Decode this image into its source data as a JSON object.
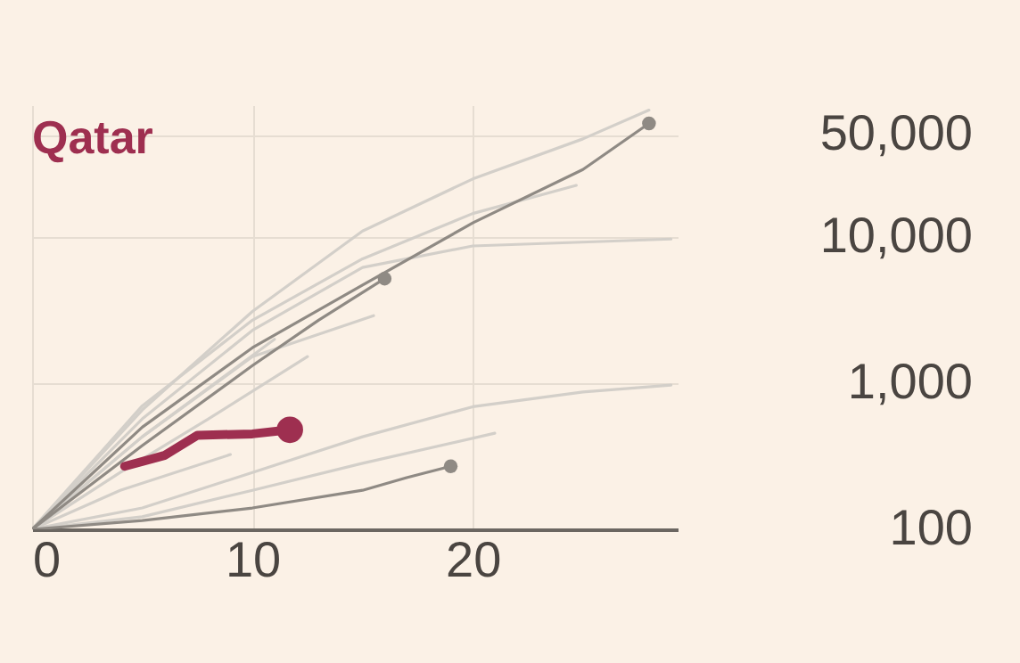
{
  "chart_data": {
    "type": "line",
    "title": "Qatar",
    "log": "y",
    "grid": true,
    "xlim": [
      0,
      29.3
    ],
    "xticks": [
      0,
      10,
      20
    ],
    "ylim": [
      100,
      80000
    ],
    "yticks": [
      100,
      {
        "value": 1000,
        "label": "1,000"
      },
      {
        "value": 10000,
        "label": "10,000"
      },
      {
        "value": 50000,
        "label": "50,000"
      }
    ],
    "series": [
      {
        "color": "#d3cfc9",
        "x": [
          0,
          5,
          10,
          15,
          20,
          25,
          28
        ],
        "values": [
          100,
          656,
          3100,
          11000,
          25000,
          47000,
          74000
        ]
      },
      {
        "color": "#d3cfc9",
        "x": [
          0,
          5,
          10,
          15,
          20,
          29
        ],
        "values": [
          100,
          570,
          2300,
          6200,
          8700,
          9700
        ]
      },
      {
        "color": "#d3cfc9",
        "x": [
          0,
          5,
          10,
          15,
          20,
          24.7
        ],
        "values": [
          100,
          700,
          2700,
          7100,
          14500,
          22600
        ]
      },
      {
        "color": "#d3cfc9",
        "x": [
          0,
          5,
          10,
          15.5
        ],
        "values": [
          100,
          430,
          1520,
          2900
        ]
      },
      {
        "color": "#d3cfc9",
        "x": [
          0,
          5,
          10,
          15,
          20,
          25,
          29
        ],
        "values": [
          100,
          140,
          245,
          430,
          690,
          870,
          970
        ]
      },
      {
        "color": "#d3cfc9",
        "x": [
          0,
          5,
          10,
          15,
          21
        ],
        "values": [
          100,
          122,
          185,
          283,
          455
        ]
      },
      {
        "color": "#d3cfc9",
        "x": [
          0,
          5,
          11
        ],
        "values": [
          100,
          430,
          2000
        ]
      },
      {
        "color": "#d3cfc9",
        "x": [
          0,
          4,
          8,
          12.5
        ],
        "values": [
          100,
          245,
          570,
          1520
        ]
      },
      {
        "color": "#d3cfc9",
        "x": [
          0,
          4,
          9
        ],
        "values": [
          100,
          185,
          325
        ]
      },
      {
        "color": "#8f8a84",
        "x": [
          0,
          5,
          10,
          15,
          20,
          25,
          28
        ],
        "values": [
          100,
          500,
          1750,
          4700,
          12500,
          29000,
          60000
        ]
      },
      {
        "color": "#8f8a84",
        "x": [
          0,
          5,
          10,
          13,
          16
        ],
        "values": [
          100,
          374,
          1320,
          2700,
          5200
        ]
      },
      {
        "color": "#8f8a84",
        "x": [
          0,
          5,
          10,
          15,
          17,
          19
        ],
        "values": [
          100,
          115,
          140,
          185,
          226,
          270
        ]
      },
      {
        "color": "#9e2f50",
        "x": [
          4.2,
          6,
          7.5,
          10,
          11.7
        ],
        "values": [
          270,
          320,
          440,
          450,
          480
        ]
      },
      {
        "type": "scatter",
        "color": "#8f8a84",
        "marker": "circle",
        "x": [
          28,
          16,
          19
        ],
        "values": [
          60000,
          5200,
          270
        ]
      },
      {
        "type": "scatter",
        "color": "#9e2f50",
        "marker": "circle",
        "x": [
          11.7
        ],
        "values": [
          480
        ]
      }
    ]
  }
}
